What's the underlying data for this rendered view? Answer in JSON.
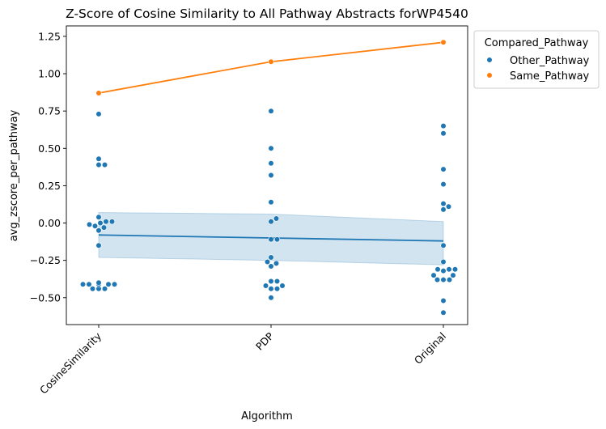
{
  "chart_data": {
    "type": "scatter",
    "title": "Z-Score of Cosine Similarity to All Pathway Abstracts forWP4540",
    "xlabel": "Algorithm",
    "ylabel": "avg_zscore_per_pathway",
    "categories": [
      "CosineSimilarity",
      "PDP",
      "Original"
    ],
    "ylim": [
      -0.68,
      1.32
    ],
    "yticks": [
      -0.5,
      -0.25,
      0.0,
      0.25,
      0.5,
      0.75,
      1.0,
      1.25
    ],
    "ytick_labels": [
      "−0.50",
      "−0.25",
      "0.00",
      "0.25",
      "0.50",
      "0.75",
      "1.00",
      "1.25"
    ],
    "legend": {
      "title": "Compared_Pathway",
      "placement": "outside-top-right",
      "entries": [
        "Other_Pathway",
        "Same_Pathway"
      ]
    },
    "series": [
      {
        "name": "Other_Pathway",
        "color": "#1f77b4",
        "points": [
          [
            0,
            0.73
          ],
          [
            0,
            0.43
          ],
          [
            0,
            0.39
          ],
          [
            0,
            0.39
          ],
          [
            0,
            0.04
          ],
          [
            0,
            0.01
          ],
          [
            0,
            0.0
          ],
          [
            0,
            0.01
          ],
          [
            0,
            -0.02
          ],
          [
            0,
            -0.03
          ],
          [
            0,
            -0.05
          ],
          [
            0,
            -0.01
          ],
          [
            0,
            -0.15
          ],
          [
            0,
            -0.41
          ],
          [
            0,
            -0.41
          ],
          [
            0,
            -0.41
          ],
          [
            0,
            -0.4
          ],
          [
            0,
            -0.41
          ],
          [
            0,
            -0.44
          ],
          [
            0,
            -0.44
          ],
          [
            0,
            -0.44
          ],
          [
            0,
            -0.41
          ],
          [
            1,
            0.75
          ],
          [
            1,
            0.5
          ],
          [
            1,
            0.4
          ],
          [
            1,
            0.32
          ],
          [
            1,
            0.14
          ],
          [
            1,
            0.03
          ],
          [
            1,
            0.01
          ],
          [
            1,
            -0.11
          ],
          [
            1,
            -0.11
          ],
          [
            1,
            -0.23
          ],
          [
            1,
            -0.26
          ],
          [
            1,
            -0.27
          ],
          [
            1,
            -0.29
          ],
          [
            1,
            -0.39
          ],
          [
            1,
            -0.39
          ],
          [
            1,
            -0.42
          ],
          [
            1,
            -0.42
          ],
          [
            1,
            -0.44
          ],
          [
            1,
            -0.44
          ],
          [
            1,
            -0.5
          ],
          [
            2,
            0.65
          ],
          [
            2,
            0.6
          ],
          [
            2,
            0.36
          ],
          [
            2,
            0.26
          ],
          [
            2,
            0.13
          ],
          [
            2,
            0.11
          ],
          [
            2,
            0.09
          ],
          [
            2,
            -0.15
          ],
          [
            2,
            -0.26
          ],
          [
            2,
            -0.31
          ],
          [
            2,
            -0.31
          ],
          [
            2,
            -0.31
          ],
          [
            2,
            -0.32
          ],
          [
            2,
            -0.35
          ],
          [
            2,
            -0.35
          ],
          [
            2,
            -0.38
          ],
          [
            2,
            -0.38
          ],
          [
            2,
            -0.38
          ],
          [
            2,
            -0.52
          ],
          [
            2,
            -0.6
          ]
        ],
        "mean_line": [
          -0.08,
          -0.1,
          -0.12
        ],
        "ci_band": {
          "lower": [
            -0.23,
            -0.25,
            -0.28
          ],
          "upper": [
            0.07,
            0.06,
            0.01
          ]
        }
      },
      {
        "name": "Same_Pathway",
        "color": "#ff7f0e",
        "points": [
          [
            0,
            0.87
          ],
          [
            1,
            1.08
          ],
          [
            2,
            1.21
          ]
        ],
        "mean_line": [
          0.87,
          1.08,
          1.21
        ]
      }
    ]
  }
}
